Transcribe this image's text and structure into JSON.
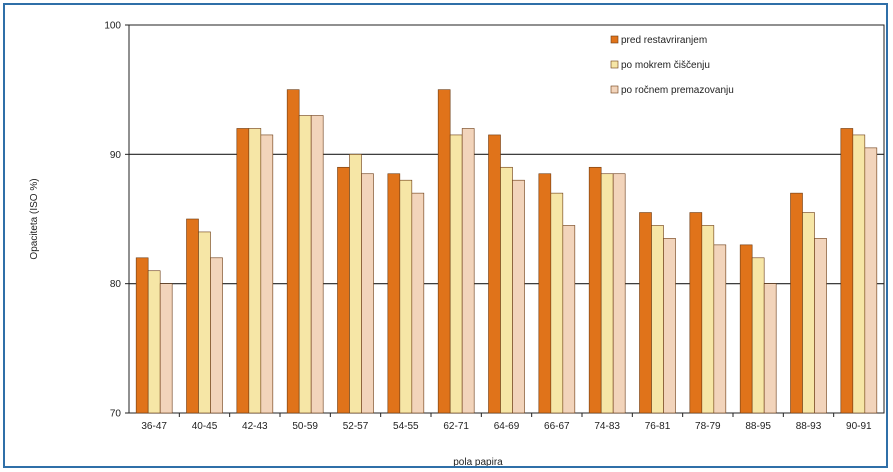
{
  "chart_data": {
    "type": "bar",
    "title": "",
    "xlabel": "pola papira",
    "ylabel": "Opaciteta (ISO %)",
    "ylim": [
      70,
      100
    ],
    "yticks": [
      70,
      80,
      90,
      100
    ],
    "grid": true,
    "legend_position": "top-right",
    "categories": [
      "36-47",
      "40-45",
      "42-43",
      "50-59",
      "52-57",
      "54-55",
      "62-71",
      "64-69",
      "66-67",
      "74-83",
      "76-81",
      "78-79",
      "88-95",
      "88-93",
      "90-91"
    ],
    "series": [
      {
        "name": "pred restavriranjem",
        "color": "#e0731a",
        "values": [
          82.0,
          85.0,
          92.0,
          95.0,
          89.0,
          88.5,
          95.0,
          91.5,
          88.5,
          89.0,
          85.5,
          85.5,
          83.0,
          87.0,
          92.0
        ]
      },
      {
        "name": "po mokrem čiščenju",
        "color": "#f6e6a6",
        "values": [
          81.0,
          84.0,
          92.0,
          93.0,
          90.0,
          88.0,
          91.5,
          89.0,
          87.0,
          88.5,
          84.5,
          84.5,
          82.0,
          85.5,
          91.5
        ]
      },
      {
        "name": "po ročnem premazovanju",
        "color": "#f2d4bb",
        "values": [
          80.0,
          82.0,
          91.5,
          93.0,
          88.5,
          87.0,
          92.0,
          88.0,
          84.5,
          88.5,
          83.5,
          83.0,
          80.0,
          83.5,
          90.5
        ]
      }
    ]
  }
}
